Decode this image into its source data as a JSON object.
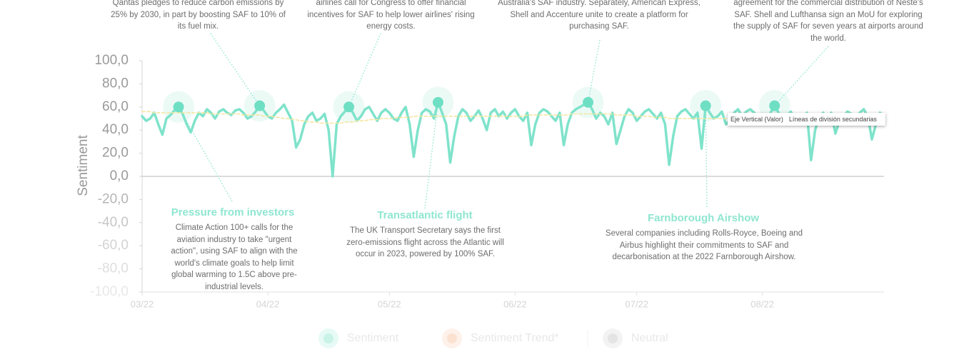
{
  "chart_data": {
    "type": "line",
    "y_label": "Sentiment",
    "ylim": [
      -100,
      100
    ],
    "yticks": [
      {
        "value": 100,
        "label": "100,0"
      },
      {
        "value": 80,
        "label": "80,0"
      },
      {
        "value": 60,
        "label": "60,0"
      },
      {
        "value": 40,
        "label": "40,0"
      },
      {
        "value": 20,
        "label": "20,0"
      },
      {
        "value": 0,
        "label": "0,0"
      },
      {
        "value": -20,
        "label": "-20,0"
      },
      {
        "value": -40,
        "label": "-40,0"
      },
      {
        "value": -60,
        "label": "-60,0"
      },
      {
        "value": -80,
        "label": "-80,0"
      },
      {
        "value": -100,
        "label": "-100,0"
      }
    ],
    "categories": [
      "03/22",
      null,
      null,
      null,
      null,
      null,
      null,
      null,
      null,
      null,
      null,
      null,
      null,
      null,
      null,
      null,
      null,
      null,
      null,
      null,
      null,
      null,
      null,
      null,
      null,
      null,
      null,
      null,
      null,
      null,
      null,
      "04/22",
      null,
      null,
      null,
      null,
      null,
      null,
      null,
      null,
      null,
      null,
      null,
      null,
      null,
      null,
      null,
      null,
      null,
      null,
      null,
      null,
      null,
      null,
      null,
      null,
      null,
      null,
      null,
      null,
      null,
      "05/22",
      null,
      null,
      null,
      null,
      null,
      null,
      null,
      null,
      null,
      null,
      null,
      null,
      null,
      null,
      null,
      null,
      null,
      null,
      null,
      null,
      null,
      null,
      null,
      null,
      null,
      null,
      null,
      null,
      null,
      null,
      "06/22",
      null,
      null,
      null,
      null,
      null,
      null,
      null,
      null,
      null,
      null,
      null,
      null,
      null,
      null,
      null,
      null,
      null,
      null,
      null,
      null,
      null,
      null,
      null,
      null,
      null,
      null,
      null,
      null,
      null,
      "07/22",
      null,
      null,
      null,
      null,
      null,
      null,
      null,
      null,
      null,
      null,
      null,
      null,
      null,
      null,
      null,
      null,
      null,
      null,
      null,
      null,
      null,
      null,
      null,
      null,
      null,
      null,
      null,
      null,
      null,
      null,
      "08/22",
      null,
      null,
      null,
      null,
      null,
      null,
      null,
      null,
      null,
      null,
      null,
      null,
      null,
      null,
      null,
      null,
      null,
      null,
      null,
      null,
      null,
      null,
      null,
      null,
      null,
      null,
      null,
      null,
      null,
      null
    ],
    "series": [
      {
        "name": "Sentiment",
        "color": "#7fe3cb",
        "values": [
          52,
          48,
          50,
          55,
          45,
          36,
          50,
          53,
          57,
          60,
          54,
          45,
          38,
          48,
          55,
          52,
          58,
          55,
          50,
          56,
          58,
          55,
          53,
          57,
          58,
          55,
          50,
          52,
          56,
          61,
          57,
          52,
          50,
          55,
          58,
          62,
          55,
          48,
          25,
          32,
          45,
          52,
          55,
          48,
          50,
          54,
          40,
          0,
          45,
          52,
          56,
          60,
          55,
          48,
          52,
          58,
          60,
          54,
          48,
          55,
          58,
          55,
          50,
          48,
          55,
          60,
          45,
          17,
          40,
          55,
          58,
          56,
          50,
          64,
          55,
          45,
          12,
          35,
          52,
          58,
          55,
          48,
          52,
          57,
          50,
          40,
          55,
          58,
          52,
          56,
          50,
          55,
          58,
          52,
          48,
          55,
          27,
          45,
          55,
          58,
          56,
          52,
          48,
          55,
          27,
          45,
          55,
          58,
          60,
          62,
          64,
          58,
          50,
          55,
          52,
          45,
          55,
          28,
          40,
          52,
          58,
          55,
          48,
          52,
          56,
          58,
          54,
          50,
          55,
          45,
          10,
          35,
          52,
          56,
          58,
          54,
          50,
          55,
          24,
          61,
          55,
          50,
          52,
          56,
          45,
          48,
          55,
          58,
          52,
          56,
          58,
          55,
          52,
          54,
          48,
          55,
          61,
          55,
          48,
          52,
          56,
          50,
          45,
          52,
          55,
          14,
          40,
          52,
          55,
          50,
          55,
          37,
          48,
          52,
          56,
          54,
          50,
          55,
          58,
          52,
          32,
          45,
          55,
          52
        ]
      },
      {
        "name": "Sentiment Trend*",
        "color": "#f3e6a0",
        "dashed": true,
        "values": [
          56,
          56,
          56,
          55,
          55,
          55,
          55,
          55,
          55,
          55,
          55,
          55,
          55,
          55,
          55,
          55,
          55,
          54,
          54,
          54,
          54,
          54,
          54,
          54,
          54,
          53,
          53,
          53,
          53,
          53,
          52,
          52,
          52,
          51,
          51,
          50,
          50,
          49,
          49,
          48,
          48,
          47,
          47,
          47,
          46,
          46,
          46,
          46,
          46,
          46,
          47,
          47,
          47,
          48,
          48,
          48,
          49,
          49,
          49,
          50,
          50,
          50,
          50,
          51,
          51,
          51,
          51,
          52,
          52,
          52,
          52,
          52,
          52,
          52,
          52,
          52,
          52,
          52,
          52,
          52,
          52,
          52,
          52,
          52,
          52,
          52,
          52,
          52,
          52,
          52,
          52,
          52,
          52,
          52,
          52,
          53,
          53,
          53,
          53,
          53,
          53,
          53,
          53,
          53,
          53,
          53,
          54,
          54,
          54,
          54,
          54,
          54,
          54,
          54,
          54,
          54,
          54,
          53,
          53,
          53,
          53,
          53,
          52,
          52,
          52,
          52,
          51,
          51,
          51,
          51,
          50,
          50,
          50,
          50,
          50,
          50,
          50,
          50,
          50,
          50,
          50,
          50,
          50,
          50,
          50,
          50,
          50,
          51,
          51,
          51,
          51,
          51,
          51,
          51,
          51,
          51,
          51,
          51,
          51,
          51,
          51,
          51,
          51,
          51,
          51,
          51,
          51,
          51,
          51,
          52,
          52,
          52,
          52,
          52,
          52,
          52,
          52,
          52,
          52,
          52,
          52,
          52,
          52,
          52
        ]
      }
    ],
    "reference": {
      "name": "Neutral",
      "value": 0,
      "color": "#777777"
    },
    "annotations": [
      {
        "title": "Pressure from investors",
        "text": "Climate Action 100+ calls for the aviation industry to take \"urgent action\", using SAF to align with the world's climate goals to help limit global warming to 1.5C above pre-industrial levels.",
        "point": 9
      },
      {
        "text": "Qantas pledges to reduce carbon emissions by 25% by 2030, in part by boosting SAF to 10% of its fuel mix.",
        "point": 29
      },
      {
        "text": "airlines call for Congress to offer financial incentives for SAF to help lower airlines' rising energy costs.",
        "point": 51
      },
      {
        "title": "Transatlantic flight",
        "text": "The UK Transport Secretary says the first zero-emissions flight across the Atlantic will occur in 2023, powered by 100% SAF.",
        "point": 73
      },
      {
        "text": "Australia's SAF industry. Separately, American Express, Shell and Accenture unite to create a platform for purchasing SAF.",
        "point": 110
      },
      {
        "title": "Farnborough Airshow",
        "text": "Several companies including Rolls-Royce, Boeing and Airbus highlight their commitments to SAF and decarbonisation at the 2022 Farnborough Airshow.",
        "point": 139
      },
      {
        "text": "agreement for the commercial distribution of Neste's SAF. Shell and Lufthansa sign an MoU for exploring the supply of SAF for seven years at airports around the world.",
        "point": 156
      }
    ],
    "tooltip": [
      "Eje Vertical (Valor)",
      "Líneas de división secundarias"
    ]
  }
}
